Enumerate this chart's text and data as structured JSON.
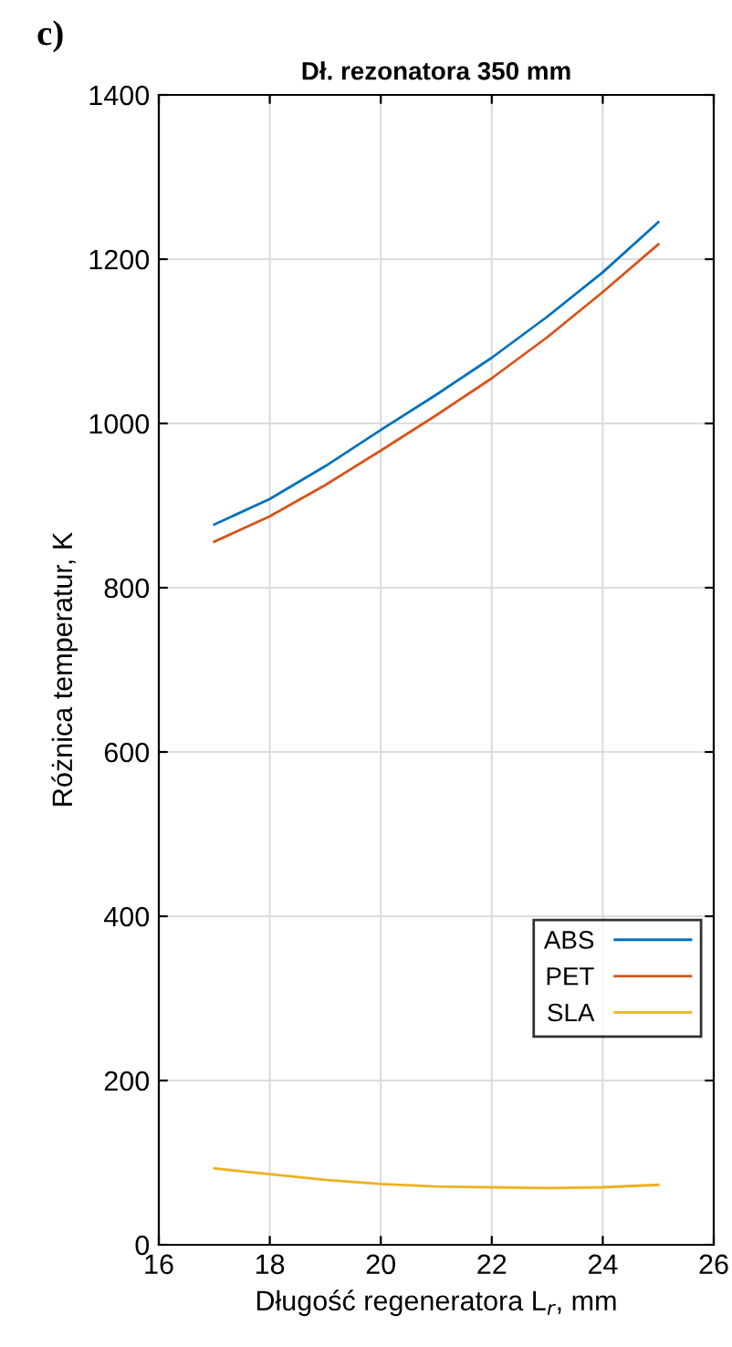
{
  "chart_data": {
    "type": "line",
    "title": "Dł. rezonatora 350 mm",
    "xlabel": "Długość regeneratora L$_{r}$, mm",
    "ylabel": "Różnica temperatur, K",
    "annotations": [
      "c)"
    ],
    "x": [
      17,
      18,
      19,
      20,
      21,
      22,
      23,
      24,
      25
    ],
    "series": [
      {
        "name": "ABS",
        "color": "#0072bd",
        "values": [
          877,
          908,
          948,
          992,
          1035,
          1080,
          1130,
          1184,
          1245
        ]
      },
      {
        "name": "PET",
        "color": "#d95319",
        "values": [
          856,
          887,
          925,
          967,
          1010,
          1055,
          1105,
          1160,
          1218
        ]
      },
      {
        "name": "SLA",
        "color": "#edb120",
        "values": [
          93,
          86,
          79,
          74,
          71,
          70,
          69,
          70,
          73
        ]
      }
    ],
    "xlim": [
      16,
      26
    ],
    "xticks": [
      16,
      18,
      20,
      22,
      24,
      26
    ],
    "ylim": [
      0,
      1400
    ],
    "yticks": [
      0,
      200,
      400,
      600,
      800,
      1000,
      1200,
      1400
    ],
    "grid": true,
    "legend": "lower right",
    "line_style": "solid",
    "marker": "none"
  }
}
